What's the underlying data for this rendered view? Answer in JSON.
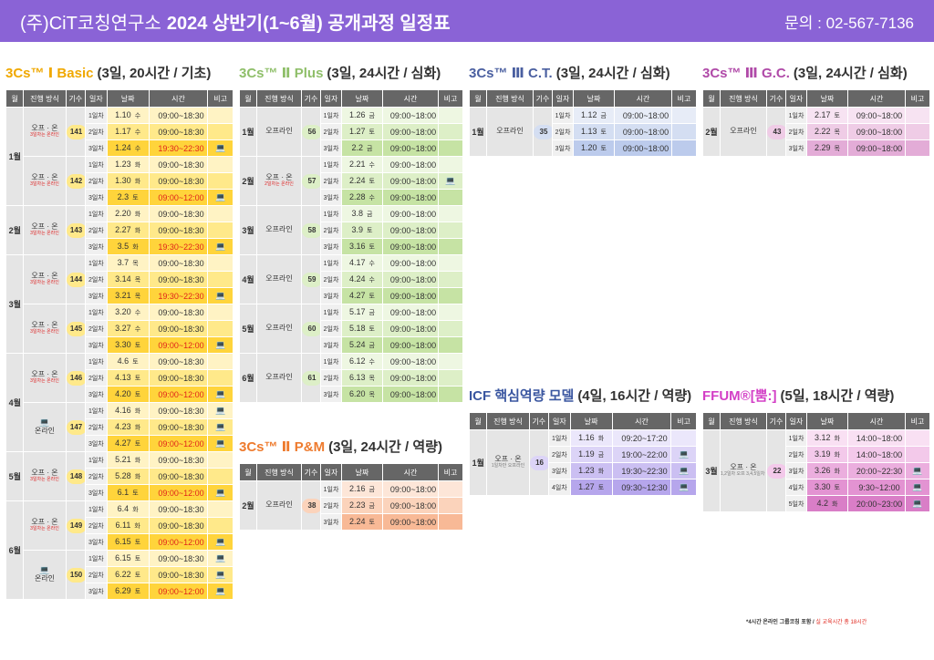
{
  "header": {
    "org": "(주)CiT코칭연구소",
    "title": "2024 상반기(1~6월) 공개과정 일정표",
    "contact": "문의 : 02-567-7136"
  },
  "cols": [
    "월",
    "진행 방식",
    "기수",
    "일자",
    "날짜",
    "시간",
    "비고"
  ],
  "colors": {
    "basic": "#f0a800",
    "plus": "#8fbf6a",
    "ct": "#4a5fa0",
    "gc": "#b04aa8",
    "pm": "#ee7b2e",
    "icf": "#3a56a0",
    "ffum": "#d33fc6"
  },
  "sections": [
    {
      "id": "basic",
      "name": "3Cs™ Ⅰ Basic",
      "sub": "(3일, 20시간 / 기초)",
      "groups": [
        {
          "m": "1월",
          "method": "오프 · 온",
          "note": "3일차는 온라인",
          "gi": "141",
          "rows": [
            [
              "1일차",
              "1.10",
              "수",
              "09:00~18:30",
              ""
            ],
            [
              "2일차",
              "1.17",
              "수",
              "09:00~18:30",
              ""
            ],
            [
              "3일차",
              "1.24",
              "수",
              "19:30~22:30",
              "💻"
            ]
          ]
        },
        {
          "m": "",
          "method": "오프 · 온",
          "note": "3일차는 온라인",
          "gi": "142",
          "rows": [
            [
              "1일차",
              "1.23",
              "화",
              "09:00~18:30",
              ""
            ],
            [
              "2일차",
              "1.30",
              "화",
              "09:00~18:30",
              ""
            ],
            [
              "3일차",
              "2.3",
              "토",
              "09:00~12:00",
              "💻"
            ]
          ]
        },
        {
          "m": "2월",
          "method": "오프 · 온",
          "note": "3일차는 온라인",
          "gi": "143",
          "rows": [
            [
              "1일차",
              "2.20",
              "화",
              "09:00~18:30",
              ""
            ],
            [
              "2일차",
              "2.27",
              "화",
              "09:00~18:30",
              ""
            ],
            [
              "3일차",
              "3.5",
              "화",
              "19:30~22:30",
              "💻"
            ]
          ]
        },
        {
          "m": "3월",
          "method": "오프 · 온",
          "note": "3일차는 온라인",
          "gi": "144",
          "rows": [
            [
              "1일차",
              "3.7",
              "목",
              "09:00~18:30",
              ""
            ],
            [
              "2일차",
              "3.14",
              "목",
              "09:00~18:30",
              ""
            ],
            [
              "3일차",
              "3.21",
              "목",
              "19:30~22:30",
              "💻"
            ]
          ]
        },
        {
          "m": "",
          "method": "오프 · 온",
          "note": "3일차는 온라인",
          "gi": "145",
          "rows": [
            [
              "1일차",
              "3.20",
              "수",
              "09:00~18:30",
              ""
            ],
            [
              "2일차",
              "3.27",
              "수",
              "09:00~18:30",
              ""
            ],
            [
              "3일차",
              "3.30",
              "토",
              "09:00~12:00",
              "💻"
            ]
          ]
        },
        {
          "m": "4월",
          "method": "오프 · 온",
          "note": "3일차는 온라인",
          "gi": "146",
          "rows": [
            [
              "1일차",
              "4.6",
              "토",
              "09:00~18:30",
              ""
            ],
            [
              "2일차",
              "4.13",
              "토",
              "09:00~18:30",
              ""
            ],
            [
              "3일차",
              "4.20",
              "토",
              "09:00~12:00",
              "💻"
            ]
          ]
        },
        {
          "m": "",
          "method": "온라인",
          "icon": "💻",
          "gi": "147",
          "rows": [
            [
              "1일차",
              "4.16",
              "화",
              "09:00~18:30",
              "💻"
            ],
            [
              "2일차",
              "4.23",
              "화",
              "09:00~18:30",
              "💻"
            ],
            [
              "3일차",
              "4.27",
              "토",
              "09:00~12:00",
              "💻"
            ]
          ]
        },
        {
          "m": "5월",
          "method": "오프 · 온",
          "note": "3일차는 온라인",
          "gi": "148",
          "rows": [
            [
              "1일차",
              "5.21",
              "화",
              "09:00~18:30",
              ""
            ],
            [
              "2일차",
              "5.28",
              "화",
              "09:00~18:30",
              ""
            ],
            [
              "3일차",
              "6.1",
              "토",
              "09:00~12:00",
              "💻"
            ]
          ]
        },
        {
          "m": "6월",
          "method": "오프 · 온",
          "note": "3일차는 온라인",
          "gi": "149",
          "rows": [
            [
              "1일차",
              "6.4",
              "화",
              "09:00~18:30",
              ""
            ],
            [
              "2일차",
              "6.11",
              "화",
              "09:00~18:30",
              ""
            ],
            [
              "3일차",
              "6.15",
              "토",
              "09:00~12:00",
              "💻"
            ]
          ]
        },
        {
          "m": "",
          "method": "온라인",
          "icon": "💻",
          "gi": "150",
          "rows": [
            [
              "1일차",
              "6.15",
              "토",
              "09:00~18:30",
              "💻"
            ],
            [
              "2일차",
              "6.22",
              "토",
              "09:00~18:30",
              "💻"
            ],
            [
              "3일차",
              "6.29",
              "토",
              "09:00~12:00",
              "💻"
            ]
          ]
        }
      ]
    },
    {
      "id": "plus",
      "name": "3Cs™ Ⅱ Plus",
      "sub": "(3일, 24시간 / 심화)",
      "groups": [
        {
          "m": "1월",
          "method": "오프라인",
          "gi": "56",
          "rows": [
            [
              "1일차",
              "1.26",
              "금",
              "09:00~18:00",
              ""
            ],
            [
              "2일차",
              "1.27",
              "토",
              "09:00~18:00",
              ""
            ],
            [
              "3일차",
              "2.2",
              "금",
              "09:00~18:00",
              ""
            ]
          ]
        },
        {
          "m": "2월",
          "method": "오프 · 온",
          "note": "2일차는 온라인",
          "gi": "57",
          "rows": [
            [
              "1일차",
              "2.21",
              "수",
              "09:00~18:00",
              ""
            ],
            [
              "2일차",
              "2.24",
              "토",
              "09:00~18:00",
              "💻"
            ],
            [
              "3일차",
              "2.28",
              "수",
              "09:00~18:00",
              ""
            ]
          ]
        },
        {
          "m": "3월",
          "method": "오프라인",
          "gi": "58",
          "rows": [
            [
              "1일차",
              "3.8",
              "금",
              "09:00~18:00",
              ""
            ],
            [
              "2일차",
              "3.9",
              "토",
              "09:00~18:00",
              ""
            ],
            [
              "3일차",
              "3.16",
              "토",
              "09:00~18:00",
              ""
            ]
          ]
        },
        {
          "m": "4월",
          "method": "오프라인",
          "gi": "59",
          "rows": [
            [
              "1일차",
              "4.17",
              "수",
              "09:00~18:00",
              ""
            ],
            [
              "2일차",
              "4.24",
              "수",
              "09:00~18:00",
              ""
            ],
            [
              "3일차",
              "4.27",
              "토",
              "09:00~18:00",
              ""
            ]
          ]
        },
        {
          "m": "5월",
          "method": "오프라인",
          "gi": "60",
          "rows": [
            [
              "1일차",
              "5.17",
              "금",
              "09:00~18:00",
              ""
            ],
            [
              "2일차",
              "5.18",
              "토",
              "09:00~18:00",
              ""
            ],
            [
              "3일차",
              "5.24",
              "금",
              "09:00~18:00",
              ""
            ]
          ]
        },
        {
          "m": "6월",
          "method": "오프라인",
          "gi": "61",
          "rows": [
            [
              "1일차",
              "6.12",
              "수",
              "09:00~18:00",
              ""
            ],
            [
              "2일차",
              "6.13",
              "목",
              "09:00~18:00",
              ""
            ],
            [
              "3일차",
              "6.20",
              "목",
              "09:00~18:00",
              ""
            ]
          ]
        }
      ]
    },
    {
      "id": "ct",
      "name": "3Cs™ Ⅲ C.T.",
      "sub": "(3일, 24시간 / 심화)",
      "groups": [
        {
          "m": "1월",
          "method": "오프라인",
          "gi": "35",
          "rows": [
            [
              "1일차",
              "1.12",
              "금",
              "09:00~18:00",
              ""
            ],
            [
              "2일차",
              "1.13",
              "토",
              "09:00~18:00",
              ""
            ],
            [
              "3일차",
              "1.20",
              "토",
              "09:00~18:00",
              ""
            ]
          ]
        }
      ]
    },
    {
      "id": "gc",
      "name": "3Cs™ Ⅲ G.C.",
      "sub": "(3일, 24시간 / 심화)",
      "groups": [
        {
          "m": "2월",
          "method": "오프라인",
          "gi": "43",
          "rows": [
            [
              "1일차",
              "2.17",
              "토",
              "09:00~18:00",
              ""
            ],
            [
              "2일차",
              "2.22",
              "목",
              "09:00~18:00",
              ""
            ],
            [
              "3일차",
              "2.29",
              "목",
              "09:00~18:00",
              ""
            ]
          ]
        }
      ]
    },
    {
      "id": "pm",
      "name": "3Cs™ Ⅱ P&M",
      "sub": "(3일, 24시간 / 역량)",
      "groups": [
        {
          "m": "2월",
          "method": "오프라인",
          "gi": "38",
          "rows": [
            [
              "1일차",
              "2.16",
              "금",
              "09:00~18:00",
              ""
            ],
            [
              "2일차",
              "2.23",
              "금",
              "09:00~18:00",
              ""
            ],
            [
              "3일차",
              "2.24",
              "토",
              "09:00~18:00",
              ""
            ]
          ]
        }
      ]
    },
    {
      "id": "icf",
      "name": "ICF 핵심역량 모델",
      "sub": "(4일, 16시간 / 역량)",
      "groups": [
        {
          "m": "1월",
          "method": "오프 · 온",
          "gnote": "1일차만 오프라인",
          "gi": "16",
          "rows": [
            [
              "1일차",
              "1.16",
              "화",
              "09:20~17:20",
              ""
            ],
            [
              "2일차",
              "1.19",
              "금",
              "19:00~22:00",
              "💻"
            ],
            [
              "3일차",
              "1.23",
              "화",
              "19:30~22:30",
              "💻"
            ],
            [
              "4일차",
              "1.27",
              "토",
              "09:30~12:30",
              "💻"
            ]
          ]
        }
      ]
    },
    {
      "id": "ffum",
      "name": "FFUM®[뿜:]",
      "sub": "(5일, 18시간 / 역량)",
      "groups": [
        {
          "m": "3월",
          "method": "오프 · 온",
          "gnote": "1,2일차 오프 3,4,5일차 온",
          "gi": "22",
          "rows": [
            [
              "1일차",
              "3.12",
              "화",
              "14:00~18:00",
              ""
            ],
            [
              "2일차",
              "3.19",
              "화",
              "14:00~18:00",
              ""
            ],
            [
              "3일차",
              "3.26",
              "화",
              "20:00~22:30",
              "💻"
            ],
            [
              "4일차",
              "3.30",
              "토",
              "9:30~12:00",
              "💻"
            ],
            [
              "5일차",
              "4.2",
              "화",
              "20:00~23:00",
              "💻"
            ]
          ]
        }
      ]
    }
  ],
  "footnote": {
    "a": "*4시간 온라인 그룹코칭 포함 / ",
    "b": "실 교육시간 총 18시간"
  }
}
